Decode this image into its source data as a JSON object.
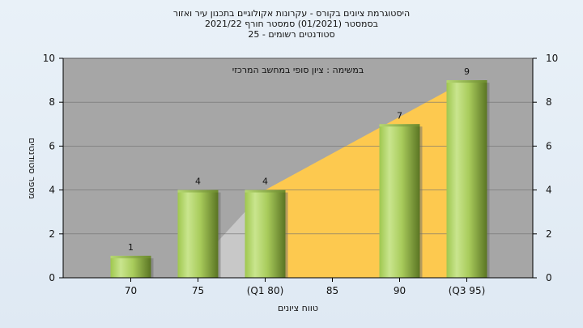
{
  "chart_data": {
    "type": "bar",
    "title_lines": [
      "היסטוגרמת ציונים בקורס - עקרונות אקולוגיים בתכנון עיר ואזור",
      "בסמסטר   (01/2021)  סמסטר חורף  2021/22",
      "סטודנטים רשומים - 25"
    ],
    "annotation": "במשימה : ציון סופי במחשב המרכזי",
    "xlabel": "טווח ציונים",
    "ylabel": "מספר סטודנטים",
    "ylim": [
      0,
      10
    ],
    "yticks": [
      "0",
      "2",
      "4",
      "6",
      "8",
      "10"
    ],
    "categories": [
      "70",
      "75",
      "(Q1 80)",
      "85",
      "90",
      "(Q3 95)"
    ],
    "values": [
      1,
      4,
      4,
      0,
      7,
      9
    ],
    "data_labels": [
      "1",
      "4",
      "4",
      "",
      "7",
      "9"
    ],
    "box_region": {
      "from_category": "(Q1 80)",
      "to_category": "(Q3 95)",
      "color": "#fdc94f"
    },
    "lower_region": {
      "from_category": "75",
      "to_category": "(Q1 80)",
      "color": "#c8c8c8"
    },
    "colors": {
      "plot_bg": "#a6a6a6",
      "bar_light": "#c5e08a",
      "bar_dark": "#5e7a24",
      "grid": "#707070"
    },
    "grid": true
  }
}
